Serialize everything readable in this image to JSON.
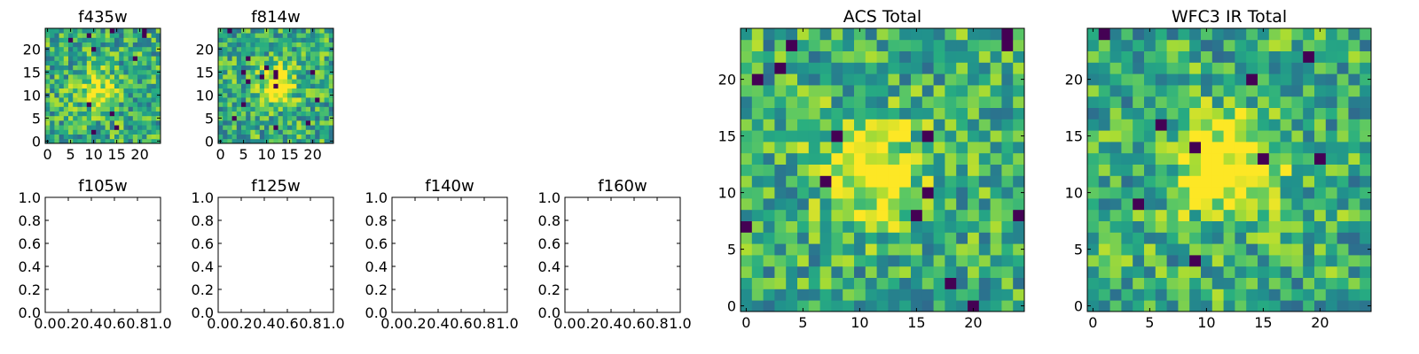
{
  "chart_data": [
    {
      "type": "heatmap",
      "title": "f435w",
      "xticks": [
        "0",
        "5",
        "10",
        "15",
        "20"
      ],
      "yticks": [
        "0",
        "5",
        "10",
        "15",
        "20"
      ],
      "xlim": [
        -0.5,
        24.5
      ],
      "ylim": [
        -0.5,
        24.5
      ],
      "size": 25,
      "seed": 11,
      "blob": [
        11,
        11
      ],
      "blob_strength": 0.35
    },
    {
      "type": "heatmap",
      "title": "f814w",
      "xticks": [
        "0",
        "5",
        "10",
        "15",
        "20"
      ],
      "yticks": [
        "0",
        "5",
        "10",
        "15",
        "20"
      ],
      "xlim": [
        -0.5,
        24.5
      ],
      "ylim": [
        -0.5,
        24.5
      ],
      "size": 25,
      "seed": 23,
      "blob": [
        12,
        12
      ],
      "blob_strength": 0.45
    },
    {
      "type": "empty",
      "title": "f105w",
      "xticks": [
        "0.0",
        "0.2",
        "0.4",
        "0.6",
        "0.8",
        "1.0"
      ],
      "yticks": [
        "0.0",
        "0.2",
        "0.4",
        "0.6",
        "0.8",
        "1.0"
      ],
      "xlim": [
        0,
        1
      ],
      "ylim": [
        0,
        1
      ]
    },
    {
      "type": "empty",
      "title": "f125w",
      "xticks": [
        "0.0",
        "0.2",
        "0.4",
        "0.6",
        "0.8",
        "1.0"
      ],
      "yticks": [
        "0.0",
        "0.2",
        "0.4",
        "0.6",
        "0.8",
        "1.0"
      ],
      "xlim": [
        0,
        1
      ],
      "ylim": [
        0,
        1
      ]
    },
    {
      "type": "empty",
      "title": "f140w",
      "xticks": [
        "0.0",
        "0.2",
        "0.4",
        "0.6",
        "0.8",
        "1.0"
      ],
      "yticks": [
        "0.0",
        "0.2",
        "0.4",
        "0.6",
        "0.8",
        "1.0"
      ],
      "xlim": [
        0,
        1
      ],
      "ylim": [
        0,
        1
      ]
    },
    {
      "type": "empty",
      "title": "f160w",
      "xticks": [
        "0.0",
        "0.2",
        "0.4",
        "0.6",
        "0.8",
        "1.0"
      ],
      "yticks": [
        "0.0",
        "0.2",
        "0.4",
        "0.6",
        "0.8",
        "1.0"
      ],
      "xlim": [
        0,
        1
      ],
      "ylim": [
        0,
        1
      ]
    },
    {
      "type": "heatmap",
      "title": "ACS Total",
      "xticks": [
        "0",
        "5",
        "10",
        "15",
        "20"
      ],
      "yticks": [
        "0",
        "5",
        "10",
        "15",
        "20"
      ],
      "xlim": [
        -0.5,
        24.5
      ],
      "ylim": [
        -0.5,
        24.5
      ],
      "size": 25,
      "seed": 37,
      "blob": [
        11,
        12
      ],
      "blob_strength": 0.5
    },
    {
      "type": "heatmap",
      "title": "WFC3 IR Total",
      "xticks": [
        "0",
        "5",
        "10",
        "15",
        "20"
      ],
      "yticks": [
        "0",
        "5",
        "10",
        "15",
        "20"
      ],
      "xlim": [
        -0.5,
        24.5
      ],
      "ylim": [
        -0.5,
        24.5
      ],
      "size": 25,
      "seed": 53,
      "blob": [
        12,
        12
      ],
      "blob_strength": 0.55
    }
  ],
  "colormap": "viridis",
  "colors": {
    "low": "#440154",
    "mid": "#21918c",
    "high": "#fde725"
  }
}
